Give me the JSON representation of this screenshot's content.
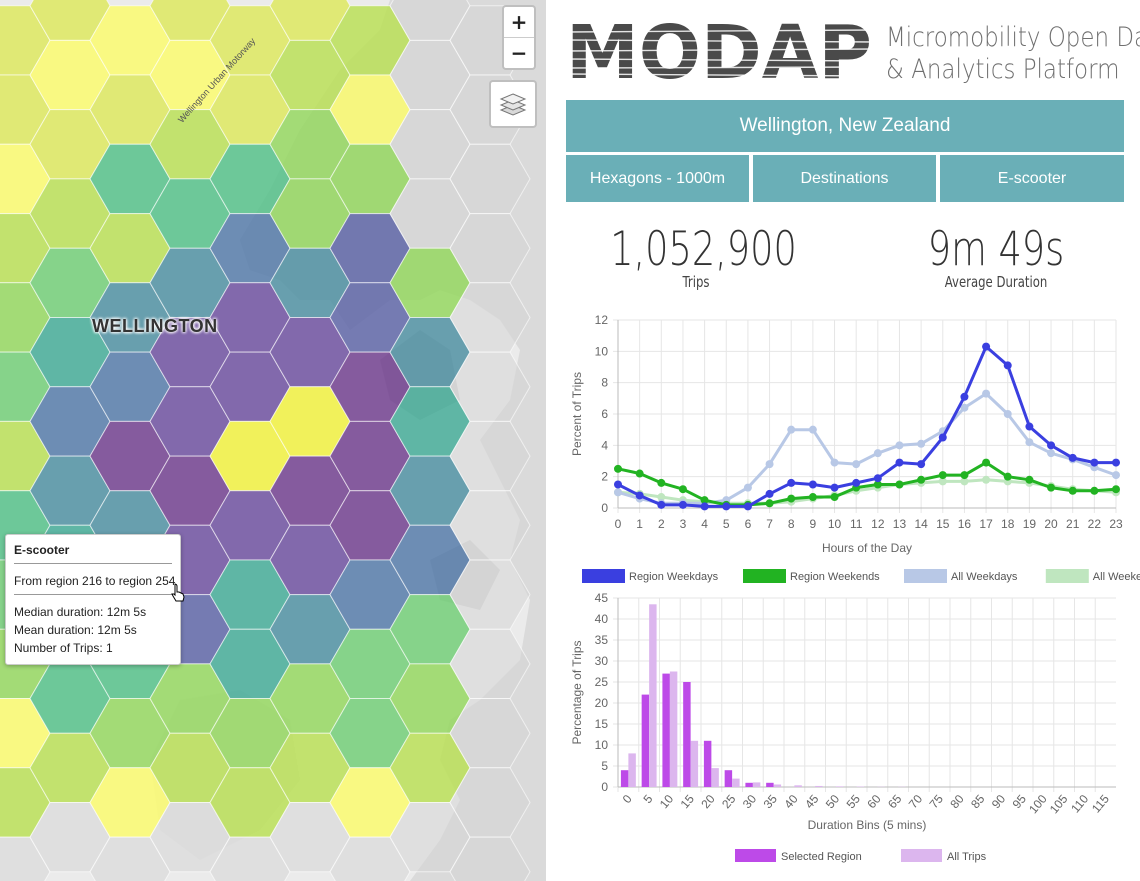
{
  "map": {
    "city_label": "WELLINGTON",
    "road_label": "Wellington Urban Motorway",
    "zoom_in": "+",
    "zoom_out": "−",
    "tooltip": {
      "title": "E-scooter",
      "route": "From region 216 to region 254",
      "median": "Median duration: 12m 5s",
      "mean": "Mean duration: 12m 5s",
      "trips": "Number of Trips: 1"
    }
  },
  "header": {
    "logo_text": "MODAP",
    "subtitle_line1": "Micromobility Open Data",
    "subtitle_line2": "& Analytics Platform"
  },
  "controls": {
    "city": "Wellington, New Zealand",
    "hexagons": "Hexagons - 1000m",
    "destinations": "Destinations",
    "mode": "E-scooter"
  },
  "stats": {
    "trips_value": "1,052,900",
    "trips_label": "Trips",
    "duration_value": "9m 49s",
    "duration_label": "Average Duration"
  },
  "colors": {
    "teal": "#6aafb7",
    "region_weekdays": "#3a3fe0",
    "region_weekends": "#22b322",
    "all_weekdays": "#b8c8e6",
    "all_weekends": "#bfe6bf",
    "selected_region": "#bd4ae8",
    "all_trips": "#dcb6ee"
  },
  "chart_data": [
    {
      "type": "line",
      "xlabel": "Hours of the Day",
      "ylabel": "Percent of Trips",
      "x": [
        0,
        1,
        2,
        3,
        4,
        5,
        6,
        7,
        8,
        9,
        10,
        11,
        12,
        13,
        14,
        15,
        16,
        17,
        18,
        19,
        20,
        21,
        22,
        23
      ],
      "ylim": [
        0,
        12
      ],
      "yticks": [
        0,
        2,
        4,
        6,
        8,
        10,
        12
      ],
      "grid": true,
      "legend_position": "bottom",
      "series": [
        {
          "name": "Region Weekdays",
          "color_key": "region_weekdays",
          "values": [
            1.5,
            0.8,
            0.2,
            0.2,
            0.1,
            0.1,
            0.1,
            0.9,
            1.6,
            1.5,
            1.3,
            1.6,
            1.9,
            2.9,
            2.8,
            4.5,
            7.1,
            10.3,
            9.1,
            5.2,
            4.0,
            3.2,
            2.9,
            2.9
          ]
        },
        {
          "name": "Region Weekends",
          "color_key": "region_weekends",
          "values": [
            2.5,
            2.2,
            1.6,
            1.2,
            0.5,
            0.2,
            0.2,
            0.3,
            0.6,
            0.7,
            0.7,
            1.3,
            1.5,
            1.5,
            1.8,
            2.1,
            2.1,
            2.9,
            2.0,
            1.8,
            1.3,
            1.1,
            1.1,
            1.2
          ]
        },
        {
          "name": "All Weekdays",
          "color_key": "all_weekdays",
          "values": [
            1.0,
            0.6,
            0.3,
            0.3,
            0.3,
            0.5,
            1.3,
            2.8,
            5.0,
            5.0,
            2.9,
            2.8,
            3.5,
            4.0,
            4.1,
            4.9,
            6.4,
            7.3,
            6.0,
            4.2,
            3.5,
            3.1,
            2.6,
            2.1
          ]
        },
        {
          "name": "All Weekends",
          "color_key": "all_weekends",
          "values": [
            1.0,
            0.9,
            0.7,
            0.5,
            0.4,
            0.3,
            0.3,
            0.3,
            0.4,
            0.6,
            0.8,
            1.1,
            1.3,
            1.5,
            1.6,
            1.7,
            1.7,
            1.8,
            1.7,
            1.6,
            1.4,
            1.2,
            1.1,
            1.0
          ]
        }
      ]
    },
    {
      "type": "bar",
      "xlabel": "Duration Bins (5 mins)",
      "ylabel": "Percentage of Trips",
      "categories": [
        "0",
        "5",
        "10",
        "15",
        "20",
        "25",
        "30",
        "35",
        "40",
        "45",
        "50",
        "55",
        "60",
        "65",
        "70",
        "75",
        "80",
        "85",
        "90",
        "95",
        "100",
        "105",
        "110",
        "115"
      ],
      "ylim": [
        0,
        45
      ],
      "yticks": [
        0,
        5,
        10,
        15,
        20,
        25,
        30,
        35,
        40,
        45
      ],
      "grid": true,
      "legend_position": "bottom",
      "series": [
        {
          "name": "Selected Region",
          "color_key": "selected_region",
          "values": [
            4,
            22,
            27,
            25,
            11,
            4,
            1,
            1,
            0,
            0,
            0,
            0,
            0,
            0,
            0,
            0,
            0,
            0,
            0,
            0,
            0,
            0,
            0,
            0
          ]
        },
        {
          "name": "All Trips",
          "color_key": "all_trips",
          "values": [
            8,
            43.5,
            27.5,
            11,
            4.5,
            2,
            1.1,
            0.6,
            0.4,
            0.25,
            0.15,
            0.1,
            0.05,
            0.05,
            0,
            0,
            0,
            0,
            0,
            0,
            0,
            0,
            0,
            0
          ]
        }
      ]
    }
  ]
}
